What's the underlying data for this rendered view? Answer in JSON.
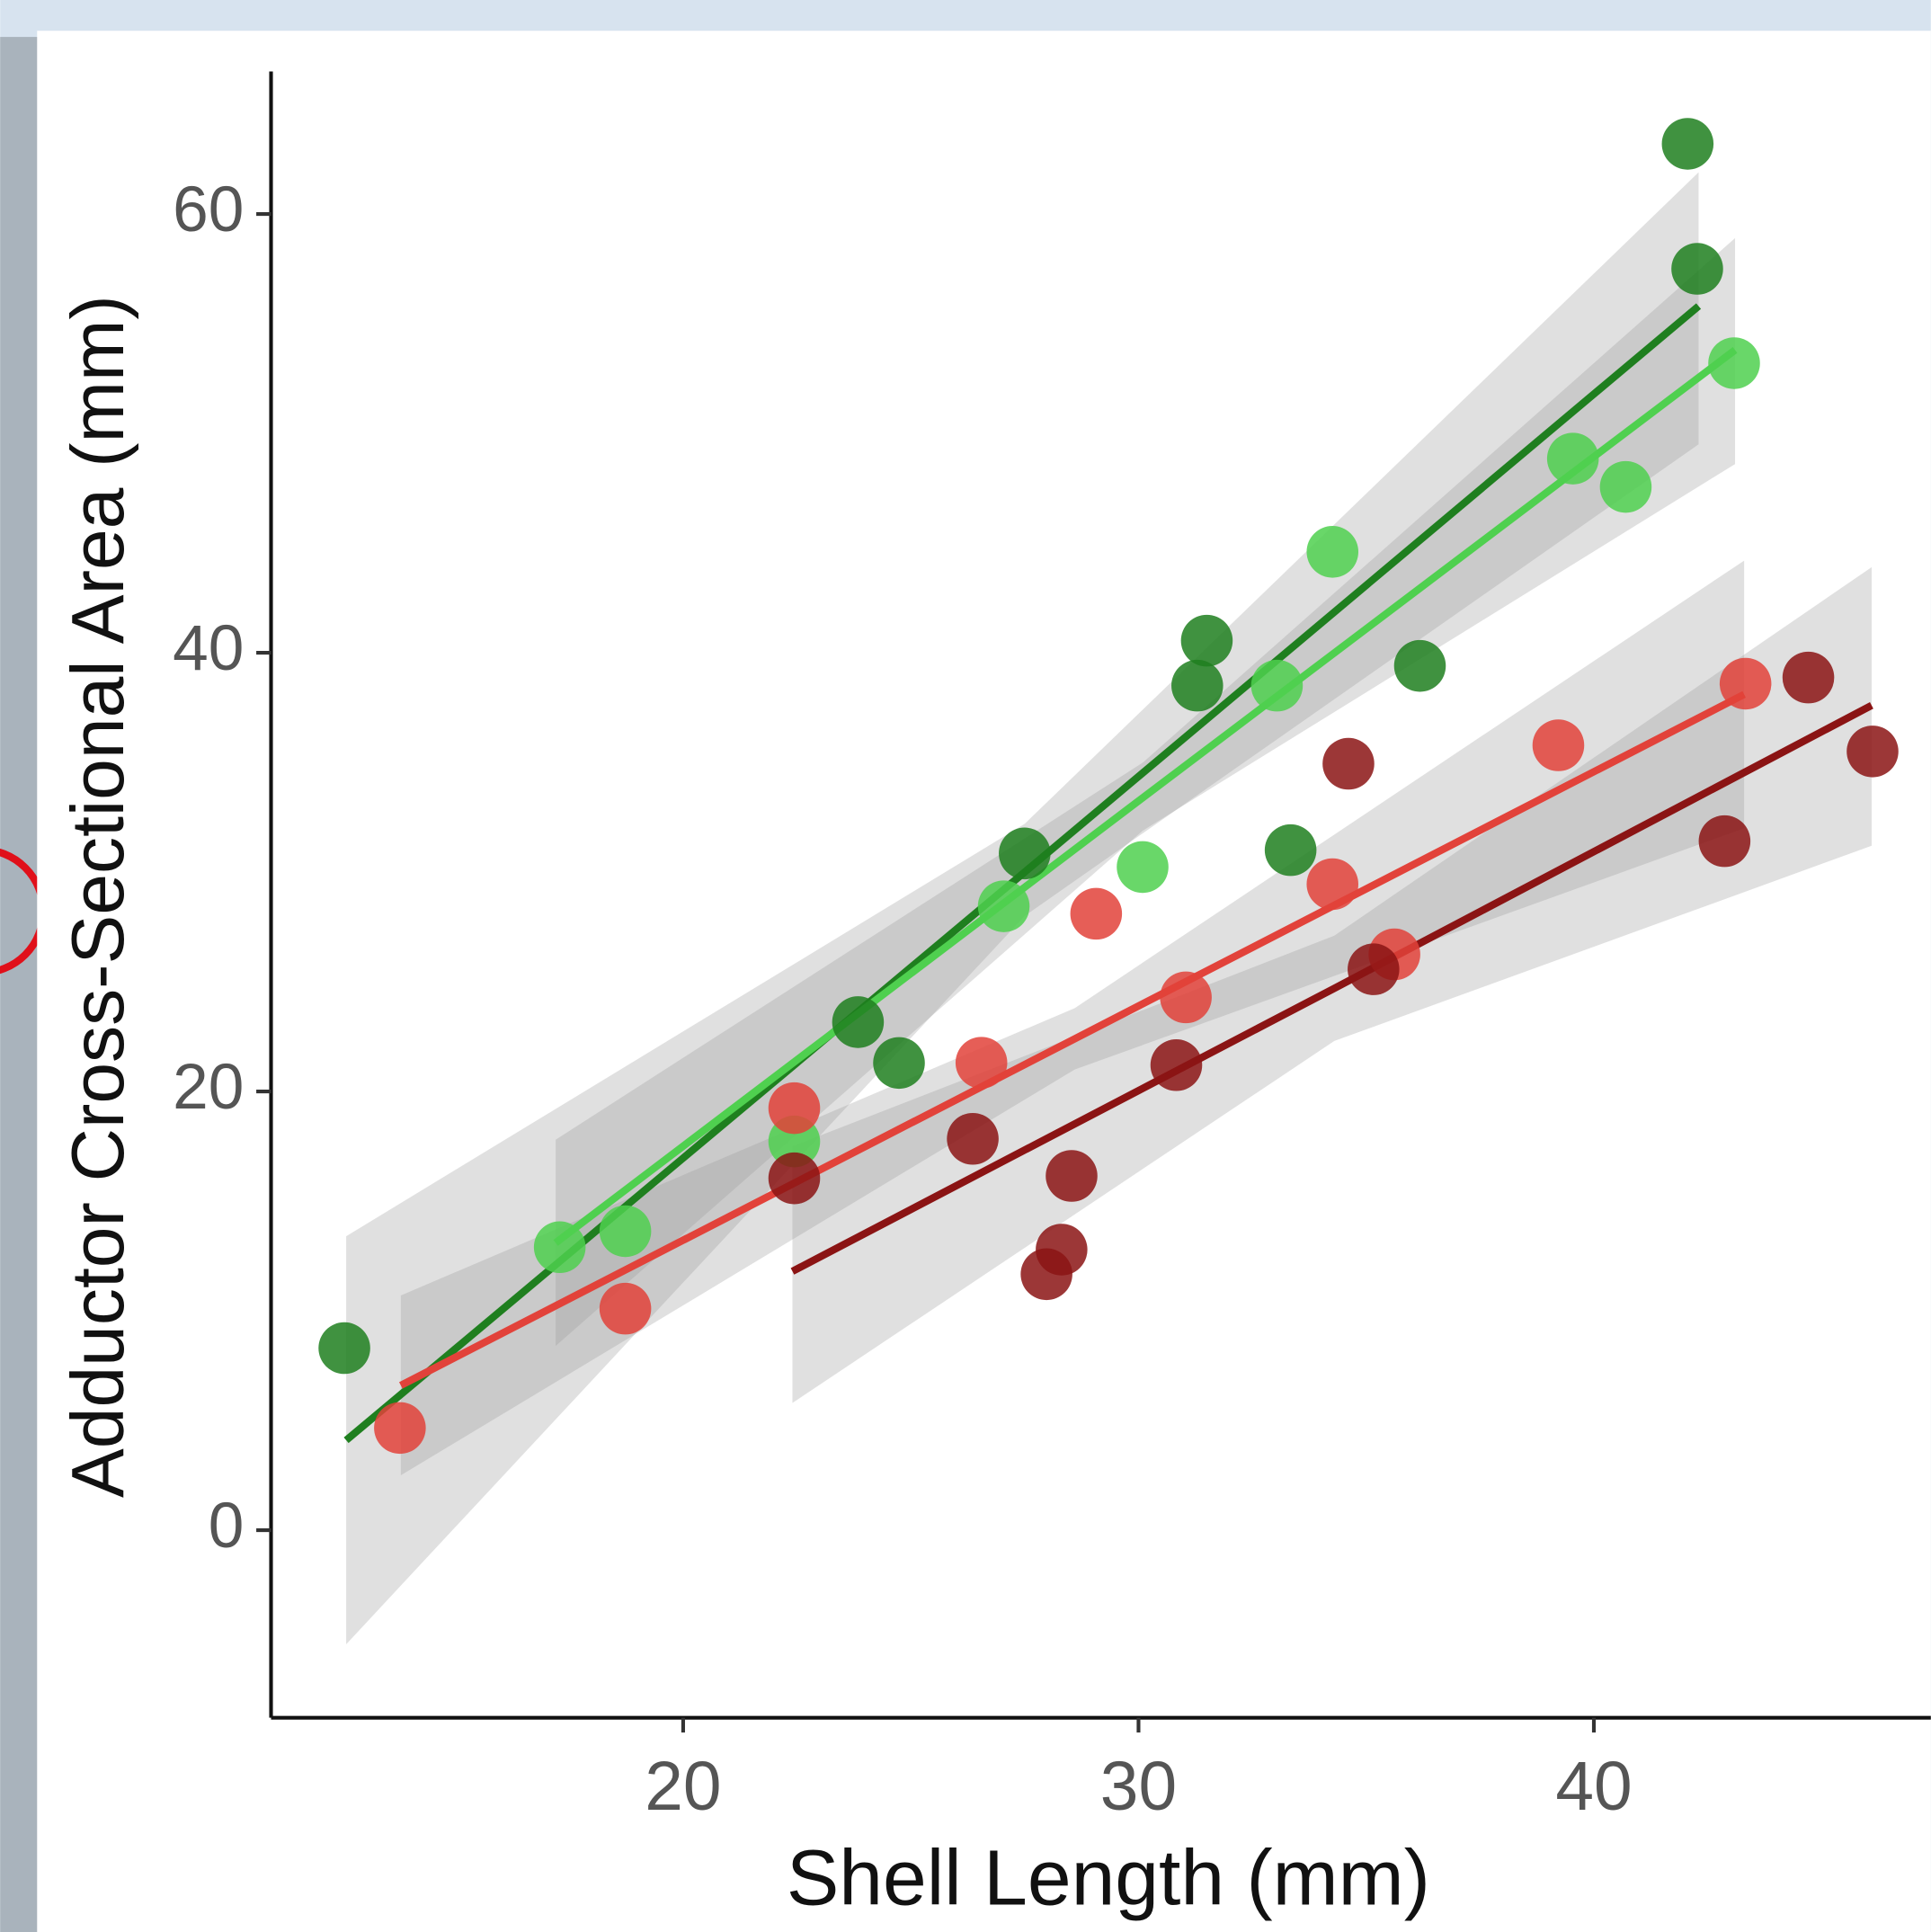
{
  "chart_data": {
    "type": "scatter",
    "x_label": "Shell Length (mm)",
    "y_label": "Adductor Cross-Sectional Area (mm)",
    "xlim": [
      10.95,
      47.4
    ],
    "ylim": [
      -8.55,
      66.5
    ],
    "xticks": [
      20,
      30,
      40
    ],
    "yticks": [
      0,
      20,
      40,
      60
    ],
    "series": [
      {
        "color": "#1f7f1f",
        "x": [
          12.56,
          42.06,
          42.27,
          31.5,
          31.29,
          36.18,
          33.34,
          27.5,
          23.84,
          24.74
        ],
        "values": [
          8.3,
          63.2,
          57.5,
          40.55,
          38.5,
          39.4,
          31.0,
          30.85,
          23.16,
          21.3
        ],
        "fit": {
          "x": [
            12.6,
            27.5,
            42.3
          ],
          "values": [
            4.1,
            30.0,
            55.8
          ],
          "lower": [
            -5.2,
            28.0,
            49.5
          ],
          "upper": [
            13.4,
            32.2,
            61.9
          ]
        }
      },
      {
        "color": "#4fd04f",
        "x": [
          43.08,
          39.54,
          40.7,
          34.26,
          33.04,
          30.09,
          27.04,
          22.44,
          17.29,
          18.73
        ],
        "values": [
          53.2,
          48.85,
          47.56,
          44.6,
          38.5,
          30.23,
          28.44,
          17.72,
          12.9,
          13.63
        ],
        "fit": {
          "x": [
            17.2,
            30.1,
            43.1
          ],
          "values": [
            13.1,
            33.4,
            53.8
          ],
          "lower": [
            8.4,
            31.9,
            48.6
          ],
          "upper": [
            17.8,
            35.0,
            58.9
          ]
        }
      },
      {
        "color": "#e2423a",
        "x": [
          13.78,
          18.73,
          22.44,
          26.55,
          29.07,
          31.04,
          34.26,
          35.62,
          39.22,
          43.33
        ],
        "values": [
          4.66,
          10.1,
          19.24,
          21.31,
          28.1,
          24.29,
          29.45,
          26.25,
          35.78,
          38.59
        ],
        "fit": {
          "x": [
            13.8,
            28.6,
            43.3
          ],
          "values": [
            6.6,
            22.4,
            38.1
          ],
          "lower": [
            2.5,
            21.0,
            32.0
          ],
          "upper": [
            10.7,
            23.8,
            44.2
          ]
        }
      },
      {
        "color": "#8b1414",
        "x": [
          22.44,
          26.36,
          27.98,
          28.31,
          28.53,
          30.83,
          34.61,
          35.16,
          42.87,
          44.71,
          46.12
        ],
        "values": [
          16.04,
          17.84,
          11.67,
          12.79,
          16.15,
          21.2,
          34.94,
          25.57,
          31.41,
          38.87,
          35.5
        ],
        "fit": {
          "x": [
            22.4,
            34.3,
            46.1
          ],
          "values": [
            11.8,
            24.7,
            37.6
          ],
          "lower": [
            5.8,
            22.3,
            31.2
          ],
          "upper": [
            17.5,
            27.1,
            43.9
          ]
        }
      }
    ]
  }
}
